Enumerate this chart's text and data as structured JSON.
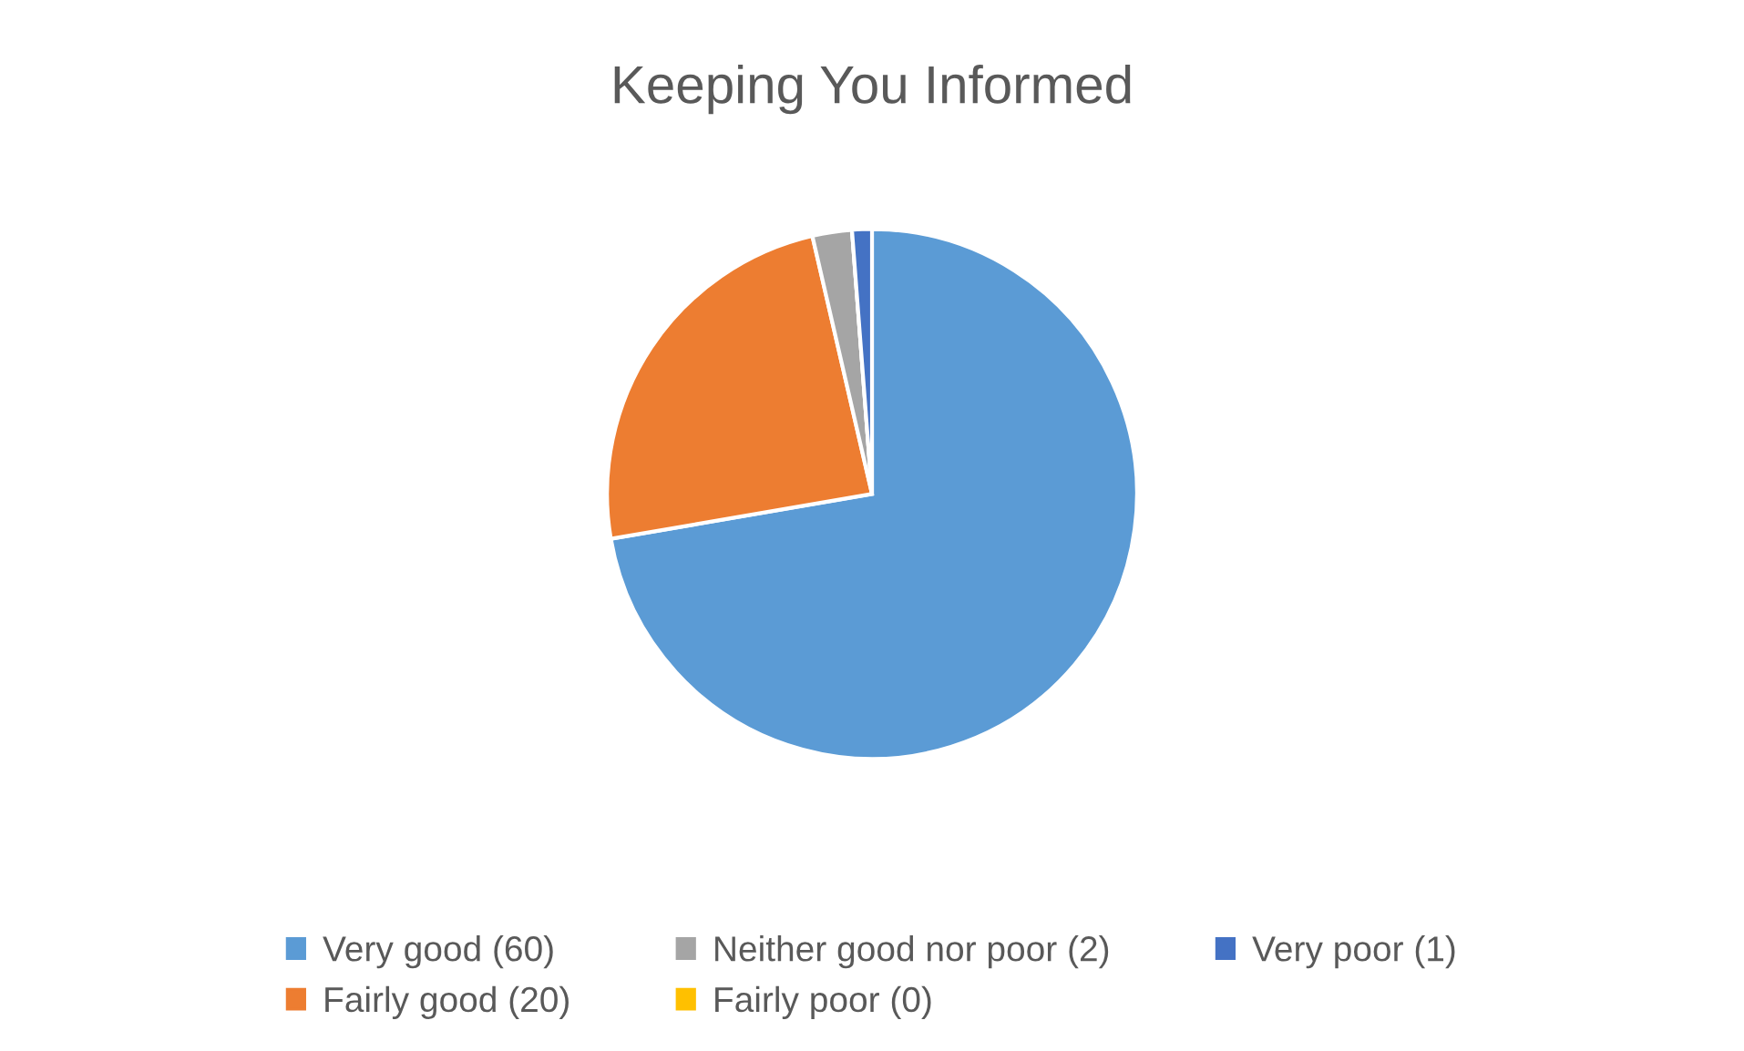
{
  "chart_data": {
    "type": "pie",
    "title": "Keeping You Informed",
    "categories": [
      "Very good (60)",
      "Fairly good (20)",
      "Neither good nor poor (2)",
      "Fairly poor (0)",
      "Very poor (1)"
    ],
    "values": [
      60,
      20,
      2,
      0,
      1
    ],
    "colors": [
      "#5b9bd5",
      "#ed7d31",
      "#a5a5a5",
      "#ffc000",
      "#4472c4"
    ],
    "legend": "bottom"
  }
}
